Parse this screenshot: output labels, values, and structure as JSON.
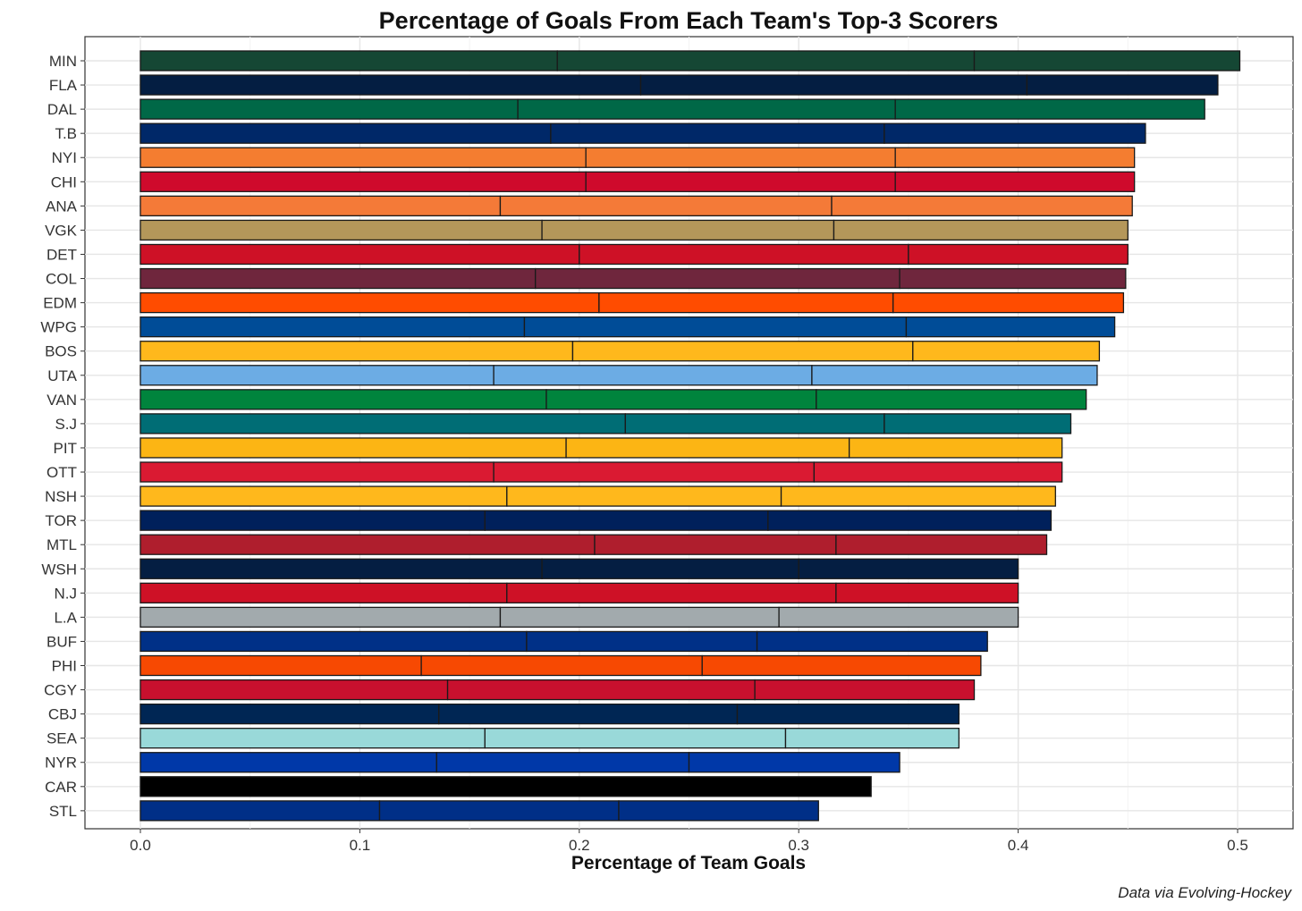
{
  "chart_data": {
    "type": "bar",
    "orientation": "horizontal",
    "stacked": true,
    "title": "Percentage of Goals From Each Team's Top-3 Scorers",
    "xlabel": "Percentage of Team Goals",
    "ylabel": "",
    "caption": "Data via Evolving-Hockey",
    "xlim": [
      -0.025,
      0.525
    ],
    "xticks": [
      "0.0",
      "0.1",
      "0.2",
      "0.3",
      "0.4",
      "0.5"
    ],
    "grid": true,
    "legend": "none",
    "teams": [
      {
        "team": "MIN",
        "color": "#154734",
        "segments": [
          0.19,
          0.19,
          0.121
        ]
      },
      {
        "team": "FLA",
        "color": "#041E42",
        "segments": [
          0.228,
          0.176,
          0.087
        ]
      },
      {
        "team": "DAL",
        "color": "#006847",
        "segments": [
          0.172,
          0.172,
          0.141
        ]
      },
      {
        "team": "T.B",
        "color": "#002868",
        "segments": [
          0.187,
          0.152,
          0.119
        ]
      },
      {
        "team": "NYI",
        "color": "#F47D30",
        "segments": [
          0.203,
          0.141,
          0.109
        ]
      },
      {
        "team": "CHI",
        "color": "#CF0A2C",
        "segments": [
          0.203,
          0.141,
          0.109
        ]
      },
      {
        "team": "ANA",
        "color": "#F47A38",
        "segments": [
          0.164,
          0.151,
          0.137
        ]
      },
      {
        "team": "VGK",
        "color": "#B4975A",
        "segments": [
          0.183,
          0.133,
          0.134
        ]
      },
      {
        "team": "DET",
        "color": "#CE1126",
        "segments": [
          0.2,
          0.15,
          0.1
        ]
      },
      {
        "team": "COL",
        "color": "#6F263D",
        "segments": [
          0.18,
          0.166,
          0.103
        ]
      },
      {
        "team": "EDM",
        "color": "#FF4C00",
        "segments": [
          0.209,
          0.134,
          0.105
        ]
      },
      {
        "team": "WPG",
        "color": "#004C97",
        "segments": [
          0.175,
          0.174,
          0.095
        ]
      },
      {
        "team": "BOS",
        "color": "#FFB81C",
        "segments": [
          0.197,
          0.155,
          0.085
        ]
      },
      {
        "team": "UTA",
        "color": "#6CACE4",
        "segments": [
          0.161,
          0.145,
          0.13
        ]
      },
      {
        "team": "VAN",
        "color": "#00843D",
        "segments": [
          0.185,
          0.123,
          0.123
        ]
      },
      {
        "team": "S.J",
        "color": "#006D75",
        "segments": [
          0.221,
          0.118,
          0.085
        ]
      },
      {
        "team": "PIT",
        "color": "#FCB514",
        "segments": [
          0.194,
          0.129,
          0.097
        ]
      },
      {
        "team": "OTT",
        "color": "#DA1A32",
        "segments": [
          0.161,
          0.146,
          0.113
        ]
      },
      {
        "team": "NSH",
        "color": "#FFB81C",
        "segments": [
          0.167,
          0.125,
          0.125
        ]
      },
      {
        "team": "TOR",
        "color": "#00205B",
        "segments": [
          0.157,
          0.129,
          0.129
        ]
      },
      {
        "team": "MTL",
        "color": "#AF1E2D",
        "segments": [
          0.207,
          0.11,
          0.096
        ]
      },
      {
        "team": "WSH",
        "color": "#041E42",
        "segments": [
          0.183,
          0.117,
          0.1
        ]
      },
      {
        "team": "N.J",
        "color": "#CE1126",
        "segments": [
          0.167,
          0.15,
          0.083
        ]
      },
      {
        "team": "L.A",
        "color": "#A2AAAD",
        "segments": [
          0.164,
          0.127,
          0.109
        ]
      },
      {
        "team": "BUF",
        "color": "#003087",
        "segments": [
          0.176,
          0.105,
          0.105
        ]
      },
      {
        "team": "PHI",
        "color": "#F74902",
        "segments": [
          0.128,
          0.128,
          0.127
        ]
      },
      {
        "team": "CGY",
        "color": "#C8102E",
        "segments": [
          0.14,
          0.14,
          0.1
        ]
      },
      {
        "team": "CBJ",
        "color": "#002654",
        "segments": [
          0.136,
          0.136,
          0.101
        ]
      },
      {
        "team": "SEA",
        "color": "#99D9D9",
        "segments": [
          0.157,
          0.137,
          0.079
        ]
      },
      {
        "team": "NYR",
        "color": "#0038A8",
        "segments": [
          0.135,
          0.115,
          0.096
        ]
      },
      {
        "team": "CAR",
        "color": "#000000",
        "segments": [
          0.333
        ]
      },
      {
        "team": "STL",
        "color": "#002F87",
        "segments": [
          0.109,
          0.109,
          0.091
        ]
      }
    ]
  }
}
